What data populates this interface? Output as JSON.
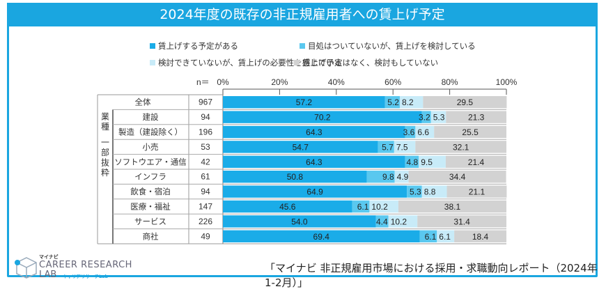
{
  "title": "2024年度の既存の非正規雇用者への賃上げ予定",
  "chart_data": {
    "type": "bar",
    "orientation": "horizontal-stacked-100",
    "title": "2024年度の既存の非正規雇用者への賃上げ予定",
    "n_label": "n＝",
    "group_label": [
      "業",
      "種",
      "一",
      "部",
      "抜",
      "粋"
    ],
    "xlim": [
      0,
      100
    ],
    "x_ticks": [
      "0%",
      "20%",
      "40%",
      "60%",
      "80%",
      "100%"
    ],
    "legend_position": "top",
    "categories": [
      "全体",
      "建設",
      "製造（建設除く）",
      "小売",
      "ソフトウエア・通信",
      "インフラ",
      "飲食・宿泊",
      "医療・福祉",
      "サービス",
      "商社"
    ],
    "n": [
      967,
      94,
      196,
      53,
      42,
      61,
      94,
      147,
      226,
      49
    ],
    "series": [
      {
        "name": "賃上げする予定がある",
        "color": "#1aace8",
        "values": [
          57.2,
          70.2,
          64.3,
          54.7,
          64.3,
          50.8,
          64.9,
          45.6,
          54.0,
          69.4
        ]
      },
      {
        "name": "目処はついていないが、賃上げを検討している",
        "color": "#5ac8ef",
        "values": [
          5.2,
          3.2,
          3.6,
          5.7,
          4.8,
          9.8,
          5.3,
          6.1,
          4.4,
          6.1
        ]
      },
      {
        "name": "検討できていないが、賃上げの必要性を感じている",
        "color": "#c8ebf8",
        "values": [
          8.2,
          5.3,
          6.6,
          7.5,
          9.5,
          4.9,
          8.8,
          10.2,
          10.2,
          6.1
        ]
      },
      {
        "name": "賃上げ予定はなく、検討もしていない",
        "color": "#d2d2d2",
        "values": [
          29.5,
          21.3,
          25.5,
          32.1,
          21.4,
          34.4,
          21.1,
          38.1,
          31.4,
          18.4
        ]
      }
    ]
  },
  "footer": {
    "logo_top": "マイナビ",
    "logo_line1": "CAREER RESEARCH",
    "logo_line2": "LAB",
    "logo_sub": "キャリアリサーチLab",
    "source": "「マイナビ 非正規雇用市場における採用・求職動向レポート（2024年1-2月）」"
  }
}
